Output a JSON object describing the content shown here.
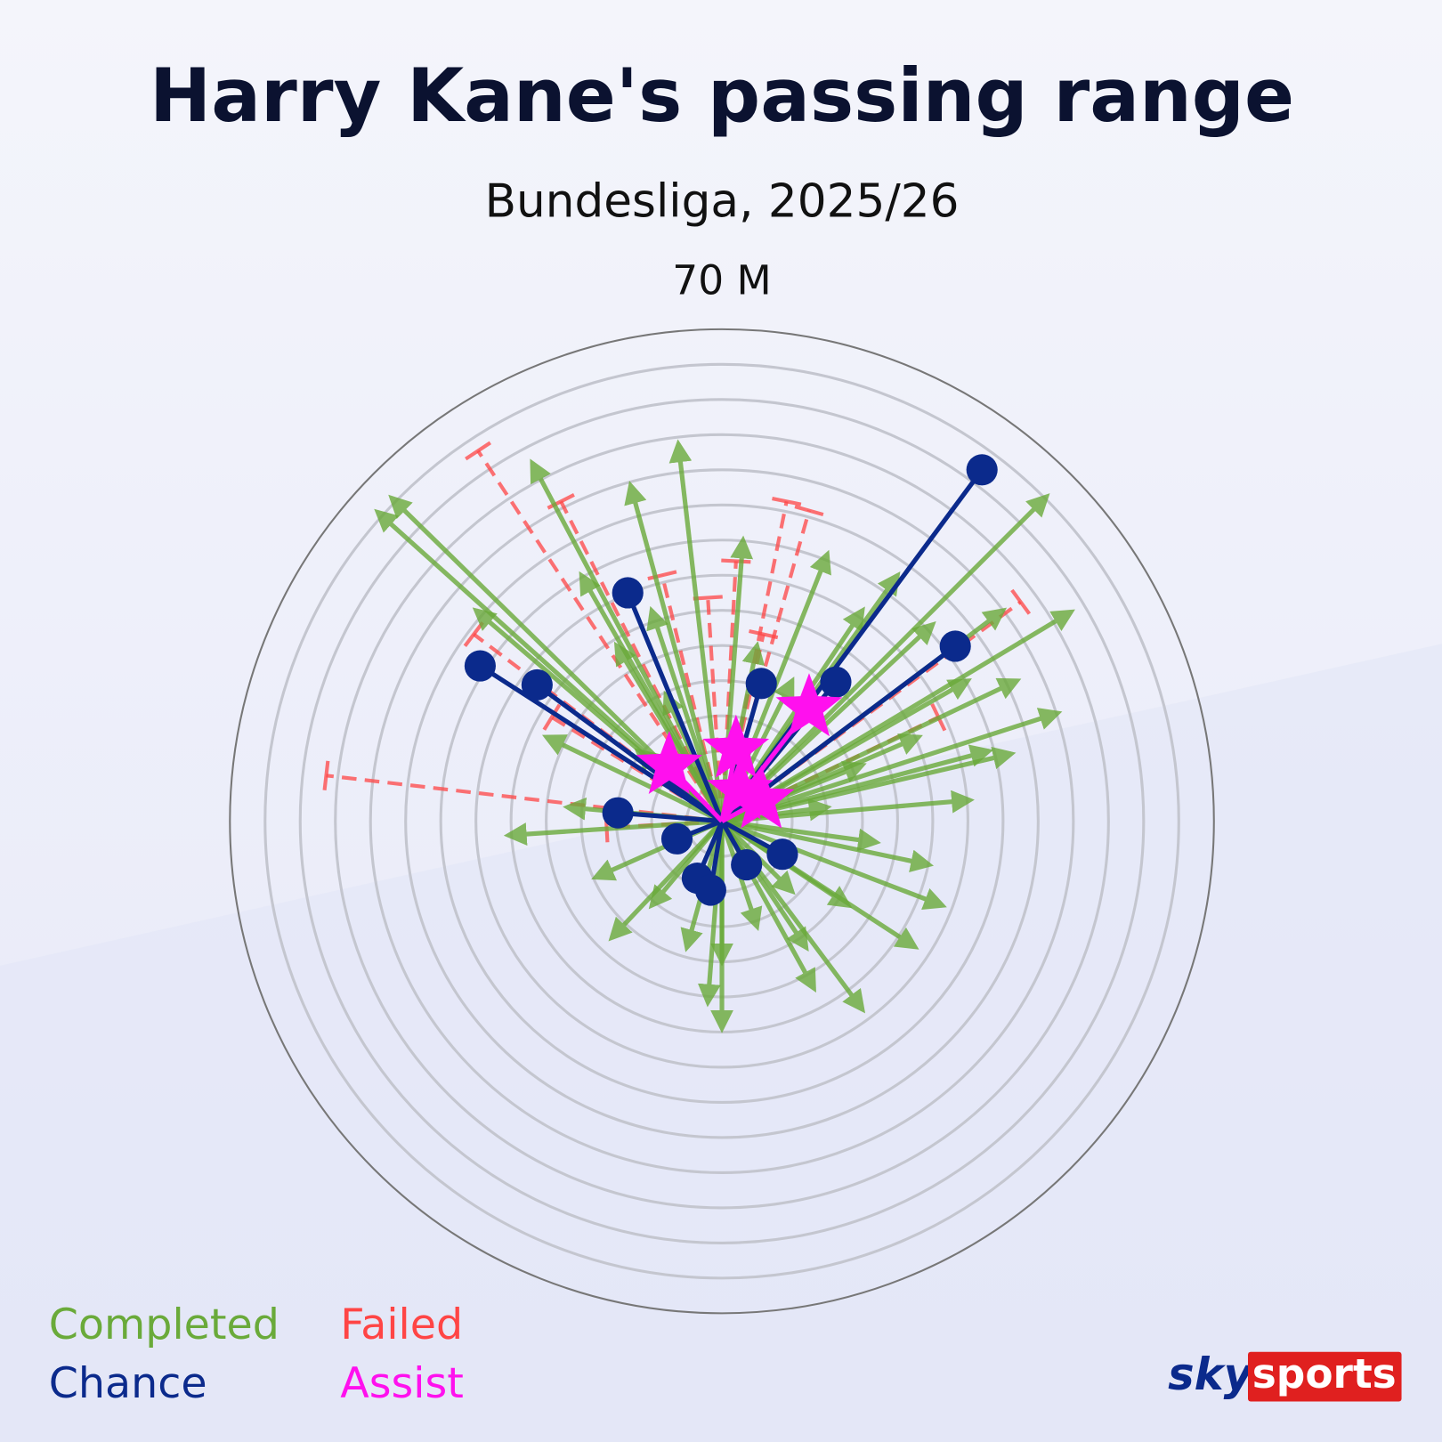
{
  "chart_data": {
    "type": "radial-pass",
    "title": "Harry Kane's passing range",
    "subtitle": "Bundesliga, 2025/26",
    "rlim": [
      0,
      70
    ],
    "rticks": [
      5,
      10,
      15,
      20,
      25,
      30,
      35,
      40,
      45,
      50,
      55,
      60,
      65,
      {
        "value": 70,
        "label": "70 M"
      }
    ],
    "series": [
      {
        "name": "Failed",
        "color": "#ff4545",
        "style": "dashed",
        "x": [
          -56.3,
          -34.7,
          -22.9,
          9.2,
          12.4,
          2,
          -2,
          -8.5,
          5.9,
          42.5,
          -35.3,
          -16.4,
          -24.2,
          30.8
        ],
        "values": [
          6.5,
          52.7,
          45.5,
          45.5,
          44.2,
          37,
          31.8,
          35,
          26.6,
          31.2,
          26.6,
          -0.9,
          14.8,
          14.8
        ]
      },
      {
        "name": "Completed",
        "color": "#6aaa3a",
        "style": "arrow",
        "x": [
          -49,
          -47,
          -27,
          -6.2,
          -13,
          46.2,
          49.7,
          47.8,
          41.2,
          35.3,
          29.5,
          31.4,
          27.5,
          20,
          13.1,
          0,
          -2,
          -15.7,
          -30.4,
          -20,
          -15,
          -10,
          5,
          10,
          20,
          25,
          30,
          35,
          28,
          20,
          15,
          22,
          10,
          5,
          -5,
          -10,
          -18,
          -22,
          -12,
          -8,
          12,
          18,
          0,
          -25,
          40,
          42,
          38,
          -35,
          3,
          15
        ],
        "values": [
          44,
          46,
          51,
          53.7,
          47.8,
          46.2,
          29.8,
          15.4,
          9.6,
          3,
          -6.2,
          -12,
          -17.9,
          -26.8,
          -23.8,
          -29.5,
          -25.8,
          -16.6,
          -2,
          35,
          25,
          30,
          25,
          20,
          30,
          35,
          28,
          20,
          12,
          8,
          2,
          -3,
          -10,
          -15,
          -18,
          -12,
          -8,
          2,
          10,
          18,
          -18,
          -12,
          -20,
          12,
          30,
          20,
          10,
          30,
          40,
          38
        ]
      },
      {
        "name": "Chance",
        "color": "#0b2a8c",
        "style": "dot",
        "x": [
          37,
          -13.4,
          -34.4,
          -26.3,
          5.6,
          16.2,
          33.2,
          -14.8,
          -6.4,
          8.6,
          3.5,
          -3.5,
          -1.6
        ],
        "values": [
          50,
          32.5,
          22.1,
          19.4,
          19.6,
          19.8,
          24.9,
          1.2,
          -2.5,
          -4.7,
          -6.2,
          -8.1,
          -9.8
        ]
      },
      {
        "name": "Assist",
        "color": "#ff10ee",
        "style": "star",
        "x": [
          12.4,
          2,
          -7.5,
          5.6,
          2.6
        ],
        "values": [
          16.1,
          10.2,
          7.9,
          3,
          4.3
        ]
      }
    ]
  },
  "brand": {
    "sky": "sky",
    "sports": "sports"
  }
}
